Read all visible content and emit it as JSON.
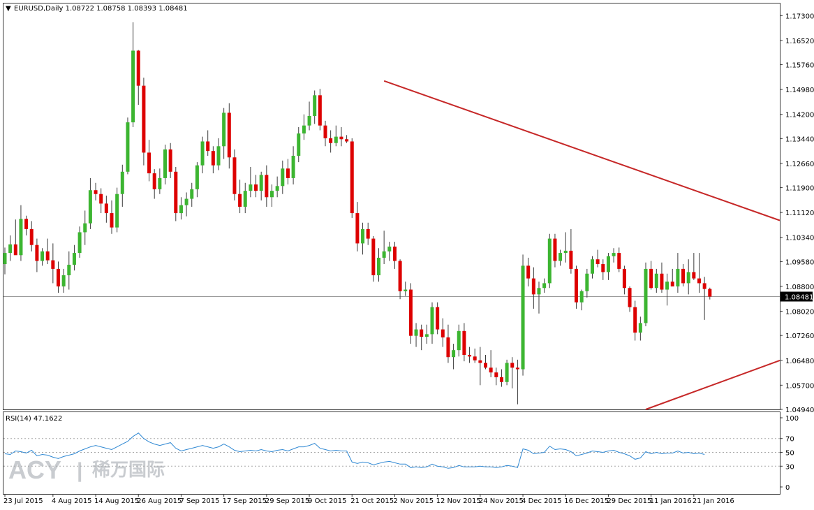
{
  "header": {
    "arrow": "▼",
    "text": "EURUSD,Daily  1.08722 1.08758 1.08393 1.08481"
  },
  "current_price_label": "1.08481",
  "watermark": {
    "brand": "ACY",
    "separator": "|",
    "cn": "稀万国际"
  },
  "colors": {
    "up": "#3cb531",
    "down": "#dd0000",
    "wick": "#3b3b3b",
    "trendline": "#c62828",
    "rsi_line": "#2f88d3",
    "price_line": "#9a9a9a",
    "frame": "#3a3a3a"
  },
  "chart_data": [
    {
      "type": "candlestick",
      "symbol": "EURUSD",
      "timeframe": "Daily",
      "ylim": [
        1.0494,
        1.1768
      ],
      "y_ticks": [
        "1.17300",
        "1.16520",
        "1.15760",
        "1.14980",
        "1.14200",
        "1.13440",
        "1.12660",
        "1.11900",
        "1.11120",
        "1.10340",
        "1.09580",
        "1.08800",
        "1.08020",
        "1.07260",
        "1.06480",
        "1.05700",
        "1.04940"
      ],
      "x_ticks": [
        "23 Jul 2015",
        "4 Aug 2015",
        "14 Aug 2015",
        "26 Aug 2015",
        "7 Sep 2015",
        "17 Sep 2015",
        "29 Sep 2015",
        "9 Oct 2015",
        "21 Oct 2015",
        "2 Nov 2015",
        "12 Nov 2015",
        "24 Nov 2015",
        "4 Dec 2015",
        "16 Dec 2015",
        "29 Dec 2015",
        "11 Jan 2016",
        "21 Jan 2016"
      ],
      "x_tick_index": [
        0,
        9,
        17,
        25,
        33,
        41,
        49,
        57,
        65,
        73,
        81,
        89,
        97,
        105,
        113,
        121,
        129
      ],
      "last_price": 1.08481,
      "ohlc": [
        [
          1.095,
          1.1002,
          1.0918,
          1.0985
        ],
        [
          1.0985,
          1.104,
          1.096,
          1.1012
        ],
        [
          1.1012,
          1.109,
          1.099,
          1.0978
        ],
        [
          1.0978,
          1.1135,
          1.096,
          1.1092
        ],
        [
          1.1092,
          1.1102,
          1.104,
          1.106
        ],
        [
          1.106,
          1.1085,
          1.099,
          1.101
        ],
        [
          1.101,
          1.103,
          1.0925,
          1.096
        ],
        [
          1.096,
          1.1,
          1.0945,
          1.099
        ],
        [
          1.099,
          1.103,
          1.095,
          1.0962
        ],
        [
          1.0962,
          1.1015,
          1.089,
          1.0935
        ],
        [
          1.0935,
          1.0958,
          1.086,
          1.088
        ],
        [
          1.088,
          1.0935,
          1.086,
          1.0915
        ],
        [
          1.0915,
          1.099,
          1.087,
          1.0948
        ],
        [
          1.0948,
          1.101,
          1.093,
          1.0985
        ],
        [
          1.0985,
          1.1068,
          1.097,
          1.105
        ],
        [
          1.105,
          1.1118,
          1.101,
          1.1078
        ],
        [
          1.1078,
          1.122,
          1.106,
          1.1182
        ],
        [
          1.1182,
          1.1205,
          1.115,
          1.117
        ],
        [
          1.117,
          1.1188,
          1.111,
          1.114
        ],
        [
          1.114,
          1.1165,
          1.108,
          1.111
        ],
        [
          1.111,
          1.115,
          1.1045,
          1.1065
        ],
        [
          1.1065,
          1.119,
          1.105,
          1.117
        ],
        [
          1.117,
          1.1262,
          1.113,
          1.124
        ],
        [
          1.124,
          1.141,
          1.1232,
          1.1395
        ],
        [
          1.1395,
          1.1709,
          1.138,
          1.162
        ],
        [
          1.162,
          1.1622,
          1.145,
          1.151
        ],
        [
          1.151,
          1.1535,
          1.126,
          1.13
        ],
        [
          1.13,
          1.134,
          1.121,
          1.1235
        ],
        [
          1.1235,
          1.1248,
          1.1155,
          1.1185
        ],
        [
          1.1185,
          1.125,
          1.117,
          1.122
        ],
        [
          1.122,
          1.1325,
          1.12,
          1.131
        ],
        [
          1.131,
          1.133,
          1.122,
          1.124
        ],
        [
          1.124,
          1.1255,
          1.1085,
          1.111
        ],
        [
          1.111,
          1.116,
          1.109,
          1.1135
        ],
        [
          1.1135,
          1.1175,
          1.11,
          1.1155
        ],
        [
          1.1155,
          1.1205,
          1.113,
          1.1185
        ],
        [
          1.1185,
          1.127,
          1.116,
          1.126
        ],
        [
          1.126,
          1.135,
          1.1235,
          1.1335
        ],
        [
          1.1335,
          1.137,
          1.129,
          1.1305
        ],
        [
          1.1305,
          1.132,
          1.1235,
          1.126
        ],
        [
          1.126,
          1.1345,
          1.1245,
          1.132
        ],
        [
          1.132,
          1.144,
          1.128,
          1.1425
        ],
        [
          1.1425,
          1.1455,
          1.125,
          1.1285
        ],
        [
          1.1285,
          1.131,
          1.115,
          1.117
        ],
        [
          1.117,
          1.1215,
          1.111,
          1.113
        ],
        [
          1.113,
          1.1205,
          1.111,
          1.118
        ],
        [
          1.118,
          1.1255,
          1.116,
          1.12
        ],
        [
          1.12,
          1.123,
          1.116,
          1.118
        ],
        [
          1.118,
          1.124,
          1.115,
          1.123
        ],
        [
          1.123,
          1.126,
          1.113,
          1.116
        ],
        [
          1.116,
          1.12,
          1.113,
          1.118
        ],
        [
          1.118,
          1.1225,
          1.116,
          1.1195
        ],
        [
          1.1195,
          1.1275,
          1.117,
          1.125
        ],
        [
          1.125,
          1.128,
          1.12,
          1.122
        ],
        [
          1.122,
          1.132,
          1.12,
          1.129
        ],
        [
          1.129,
          1.138,
          1.127,
          1.136
        ],
        [
          1.136,
          1.142,
          1.134,
          1.1385
        ],
        [
          1.1385,
          1.146,
          1.137,
          1.1415
        ],
        [
          1.1415,
          1.1495,
          1.139,
          1.148
        ],
        [
          1.148,
          1.15,
          1.137,
          1.1385
        ],
        [
          1.1385,
          1.14,
          1.132,
          1.1345
        ],
        [
          1.1345,
          1.137,
          1.13,
          1.133
        ],
        [
          1.133,
          1.1385,
          1.132,
          1.135
        ],
        [
          1.135,
          1.138,
          1.132,
          1.1342
        ],
        [
          1.1342,
          1.1355,
          1.133,
          1.1335
        ],
        [
          1.1335,
          1.1345,
          1.1095,
          1.111
        ],
        [
          1.111,
          1.1145,
          1.099,
          1.1015
        ],
        [
          1.1015,
          1.108,
          1.098,
          1.106
        ],
        [
          1.106,
          1.108,
          1.101,
          1.103
        ],
        [
          1.103,
          1.1038,
          1.0895,
          1.0915
        ],
        [
          1.0915,
          1.1,
          1.0895,
          1.097
        ],
        [
          1.097,
          1.1055,
          1.095,
          1.099
        ],
        [
          1.099,
          1.102,
          1.096,
          1.1005
        ],
        [
          1.1005,
          1.102,
          1.0935,
          1.096
        ],
        [
          1.096,
          1.0965,
          1.084,
          1.0865
        ],
        [
          1.0865,
          1.0895,
          1.085,
          1.087
        ],
        [
          1.087,
          1.089,
          1.07,
          1.0725
        ],
        [
          1.0725,
          1.0765,
          1.069,
          1.0745
        ],
        [
          1.0745,
          1.076,
          1.068,
          1.0722
        ],
        [
          1.0722,
          1.076,
          1.07,
          1.073
        ],
        [
          1.073,
          1.083,
          1.07,
          1.0815
        ],
        [
          1.0815,
          1.083,
          1.073,
          1.0745
        ],
        [
          1.0745,
          1.078,
          1.069,
          1.072
        ],
        [
          1.072,
          1.076,
          1.064,
          1.0658
        ],
        [
          1.0658,
          1.07,
          1.062,
          1.068
        ],
        [
          1.068,
          1.076,
          1.066,
          1.074
        ],
        [
          1.074,
          1.0765,
          1.0645,
          1.0665
        ],
        [
          1.0665,
          1.069,
          1.064,
          1.066
        ],
        [
          1.066,
          1.0685,
          1.064,
          1.0648
        ],
        [
          1.0648,
          1.069,
          1.057,
          1.064
        ],
        [
          1.064,
          1.0665,
          1.062,
          1.0625
        ],
        [
          1.0625,
          1.068,
          1.0595,
          1.061
        ],
        [
          1.061,
          1.0625,
          1.057,
          1.0595
        ],
        [
          1.0595,
          1.062,
          1.0565,
          1.058
        ],
        [
          1.058,
          1.065,
          1.057,
          1.064
        ],
        [
          1.064,
          1.0658,
          1.056,
          1.0625
        ],
        [
          1.0625,
          1.065,
          1.051,
          1.062
        ],
        [
          1.062,
          1.098,
          1.06,
          1.0945
        ],
        [
          1.0945,
          1.097,
          1.088,
          1.0905
        ],
        [
          1.0905,
          1.094,
          1.081,
          1.0855
        ],
        [
          1.0855,
          1.0895,
          1.0795,
          1.0875
        ],
        [
          1.0875,
          1.0905,
          1.086,
          1.089
        ],
        [
          1.089,
          1.1045,
          1.0875,
          1.103
        ],
        [
          1.103,
          1.1045,
          1.094,
          1.096
        ],
        [
          1.096,
          1.0995,
          1.0945,
          1.0985
        ],
        [
          1.0985,
          1.105,
          1.0955,
          1.0992
        ],
        [
          1.0992,
          1.106,
          1.092,
          1.0935
        ],
        [
          1.0935,
          1.0945,
          1.081,
          1.083
        ],
        [
          1.083,
          1.087,
          1.0805,
          1.0865
        ],
        [
          1.0865,
          1.0935,
          1.0845,
          1.092
        ],
        [
          1.092,
          1.0975,
          1.0905,
          1.0965
        ],
        [
          1.0965,
          1.0995,
          1.094,
          1.095
        ],
        [
          1.095,
          1.0965,
          1.09,
          1.0925
        ],
        [
          1.0925,
          1.0985,
          1.09,
          1.0975
        ],
        [
          1.0975,
          1.1,
          1.0955,
          1.0985
        ],
        [
          1.0985,
          1.1002,
          1.0925,
          1.0935
        ],
        [
          1.0935,
          1.0945,
          1.0855,
          1.0875
        ],
        [
          1.0875,
          1.088,
          1.08,
          1.0815
        ],
        [
          1.0815,
          1.0835,
          1.071,
          1.0735
        ],
        [
          1.0735,
          1.0785,
          1.071,
          1.0765
        ],
        [
          1.0765,
          1.0955,
          1.0755,
          1.0935
        ],
        [
          1.0935,
          1.096,
          1.087,
          1.0875
        ],
        [
          1.0875,
          1.0935,
          1.086,
          1.092
        ],
        [
          1.092,
          1.0955,
          1.086,
          1.087
        ],
        [
          1.087,
          1.092,
          1.082,
          1.0895
        ],
        [
          1.0895,
          1.0935,
          1.088,
          1.088
        ],
        [
          1.088,
          1.0985,
          1.086,
          1.0935
        ],
        [
          1.0935,
          1.095,
          1.088,
          1.089
        ],
        [
          1.089,
          1.0965,
          1.0855,
          1.0925
        ],
        [
          1.0925,
          1.0985,
          1.09,
          1.0905
        ],
        [
          1.0905,
          1.0985,
          1.086,
          1.089
        ],
        [
          1.089,
          1.091,
          1.0775,
          1.0872
        ],
        [
          1.0872,
          1.0876,
          1.0839,
          1.0848
        ]
      ],
      "trendlines": [
        {
          "from": [
            71,
            1.1525
          ],
          "to": [
            170,
            1.094
          ]
        },
        {
          "from": [
            120,
            1.0494
          ],
          "to": [
            170,
            1.08
          ]
        }
      ]
    },
    {
      "type": "line",
      "title": "RSI(14) 47.1622",
      "ylim": [
        0,
        100
      ],
      "y_ticks": [
        "100",
        "70",
        "50",
        "30",
        "0"
      ],
      "levels": [
        70,
        50,
        30
      ],
      "values": [
        48,
        47,
        52,
        51,
        49,
        53,
        45,
        47,
        46,
        43,
        41,
        44,
        46,
        48,
        52,
        55,
        58,
        60,
        58,
        56,
        54,
        58,
        62,
        66,
        73,
        78,
        70,
        65,
        62,
        60,
        62,
        64,
        56,
        52,
        54,
        56,
        58,
        60,
        58,
        56,
        58,
        62,
        58,
        53,
        51,
        52,
        53,
        52,
        54,
        52,
        51,
        53,
        54,
        52,
        55,
        58,
        58,
        60,
        63,
        56,
        54,
        52,
        53,
        52,
        52,
        36,
        34,
        36,
        35,
        32,
        34,
        36,
        37,
        35,
        33,
        33,
        28,
        29,
        28,
        29,
        33,
        30,
        29,
        27,
        28,
        31,
        29,
        29,
        29,
        30,
        29,
        29,
        28,
        29,
        31,
        30,
        28,
        55,
        53,
        48,
        49,
        50,
        59,
        54,
        55,
        54,
        51,
        45,
        47,
        49,
        52,
        51,
        50,
        52,
        53,
        50,
        48,
        45,
        40,
        42,
        51,
        48,
        50,
        48,
        49,
        49,
        52,
        49,
        50,
        48,
        49,
        47
      ]
    }
  ]
}
